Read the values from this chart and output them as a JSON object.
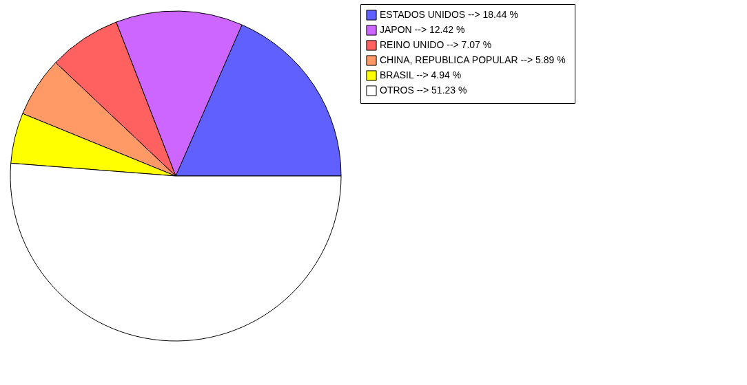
{
  "chart_data": {
    "type": "pie",
    "categories": [
      "ESTADOS UNIDOS -->  18.44 %",
      "JAPON -->  12.42 %",
      "REINO UNIDO -->  7.07 %",
      "CHINA, REPUBLICA POPULAR -->  5.89 %",
      "BRASIL -->  4.94 %",
      "OTROS -->  51.23 %"
    ],
    "values": [
      18.44,
      12.42,
      7.07,
      5.89,
      4.94,
      51.23
    ],
    "colors": [
      "#6060ff",
      "#cc66ff",
      "#ff6060",
      "#ff9966",
      "#ffff00",
      "#ffffff"
    ],
    "legend": "top right"
  }
}
